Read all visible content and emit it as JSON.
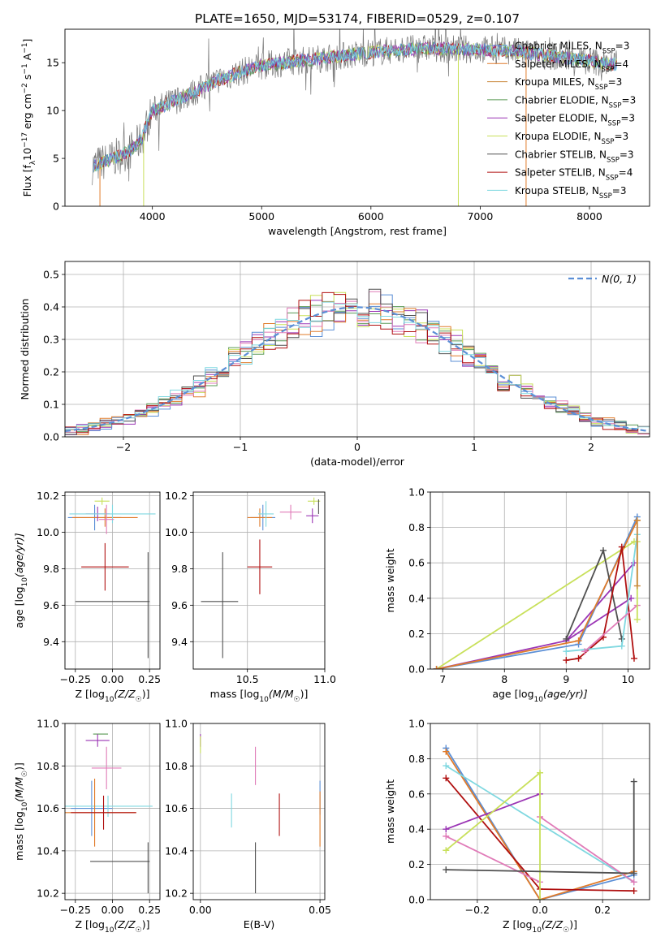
{
  "title": "PLATE=1650, MJD=53174, FIBERID=0529, z=0.107",
  "colors": {
    "chabrier_miles": "#5b8fd6",
    "salpeter_miles": "#e07b2a",
    "kroupa_miles": "#c9873a",
    "chabrier_elodie": "#5a9a55",
    "salpeter_elodie": "#9b35b5",
    "kroupa_elodie": "#c8e05a",
    "chabrier_stelib": "#505050",
    "salpeter_stelib": "#b01010",
    "kroupa_stelib": "#7fd8e0",
    "pink": "#e07bb8",
    "grid": "#b0b0b0"
  },
  "chart_data": [
    {
      "id": "spectrum",
      "type": "line",
      "xlabel": "wavelength [Angstrom, rest frame]",
      "ylabel": "Flux [f_λ10^-17 erg cm^-2 s^-1 A^-1]",
      "xlim": [
        3200,
        8550
      ],
      "ylim": [
        0,
        18.5
      ],
      "xticks": [
        4000,
        5000,
        6000,
        7000,
        8000
      ],
      "yticks": [
        0,
        5,
        10,
        15
      ],
      "grid": false,
      "legend_position": "right",
      "legend": [
        "Chabrier MILES, N_SSP=3",
        "Salpeter MILES, N_SSP=4",
        "Kroupa MILES, N_SSP=3",
        "Chabrier ELODIE, N_SSP=3",
        "Salpeter ELODIE, N_SSP=3",
        "Kroupa ELODIE, N_SSP=3",
        "Chabrier STELIB, N_SSP=3",
        "Salpeter STELIB, N_SSP=4",
        "Kroupa STELIB, N_SSP=3"
      ],
      "continuum": {
        "x": [
          3450,
          3600,
          3800,
          3900,
          4000,
          4200,
          4400,
          4600,
          4800,
          5000,
          5200,
          5500,
          5800,
          6000,
          6200,
          6500,
          6800,
          7000,
          7300,
          7600,
          8000,
          8250
        ],
        "y": [
          4.2,
          4.8,
          5.8,
          7.0,
          10.0,
          11.0,
          12.0,
          13.2,
          14.0,
          14.7,
          15.0,
          15.4,
          15.8,
          16.1,
          16.3,
          16.5,
          16.4,
          16.4,
          16.2,
          15.8,
          15.2,
          14.8
        ]
      }
    },
    {
      "id": "residual-hist",
      "type": "step-histogram",
      "xlabel": "(data-model)/error",
      "ylabel": "Normed distribution",
      "xlim": [
        -2.5,
        2.5
      ],
      "ylim": [
        0,
        0.54
      ],
      "xticks": [
        -2,
        -1,
        0,
        1,
        2
      ],
      "yticks": [
        0.0,
        0.1,
        0.2,
        0.3,
        0.4,
        0.5
      ],
      "grid": true,
      "legend": "N(0,1)",
      "legend_position": "top-right"
    },
    {
      "id": "age-vs-z",
      "type": "errorbar",
      "xlabel": "Z [log10(Z/Z☉)]",
      "ylabel": "age  [log10(age/yr)]",
      "xlim": [
        -0.32,
        0.32
      ],
      "ylim": [
        9.25,
        10.22
      ],
      "xticks": [
        -0.25,
        0.0,
        0.25
      ],
      "yticks": [
        9.4,
        9.6,
        9.8,
        10.0,
        10.2
      ],
      "points": [
        {
          "c": "chabrier_miles",
          "x": -0.12,
          "y": 10.08,
          "xe": 0.18,
          "ye": 0.07
        },
        {
          "c": "salpeter_miles",
          "x": -0.05,
          "y": 10.08,
          "xe": 0.22,
          "ye": 0.05
        },
        {
          "c": "salpeter_elodie",
          "x": -0.1,
          "y": 10.1,
          "xe": 0.08,
          "ye": 0.04
        },
        {
          "c": "kroupa_elodie",
          "x": -0.07,
          "y": 10.17,
          "xe": 0.05,
          "ye": 0.02
        },
        {
          "c": "kroupa_stelib",
          "x": 0.0,
          "y": 10.1,
          "xe": 0.29,
          "ye": 0.05
        },
        {
          "c": "pink",
          "x": -0.04,
          "y": 10.07,
          "xe": 0.05,
          "ye": 0.08
        },
        {
          "c": "salpeter_stelib",
          "x": -0.05,
          "y": 9.81,
          "xe": 0.16,
          "ye": 0.13
        },
        {
          "c": "chabrier_stelib",
          "x": 0.0,
          "y": 9.62,
          "xe": 0.25,
          "ye": 0.0
        },
        {
          "c": "chabrier_stelib",
          "x": 0.24,
          "y": 9.6,
          "xe": 0.0,
          "ye": 0.29
        }
      ]
    },
    {
      "id": "age-vs-mass",
      "type": "errorbar",
      "xlabel": "mass [log10(M/M☉)]",
      "ylabel": "",
      "xlim": [
        10.15,
        11.0
      ],
      "ylim": [
        9.25,
        10.22
      ],
      "xticks": [
        10.5,
        11.0
      ],
      "yticks": [
        9.4,
        9.6,
        9.8,
        10.0,
        10.2
      ],
      "points": [
        {
          "c": "chabrier_miles",
          "x": 10.6,
          "y": 10.08,
          "xe": 0.08,
          "ye": 0.07
        },
        {
          "c": "salpeter_miles",
          "x": 10.58,
          "y": 10.08,
          "xe": 0.08,
          "ye": 0.05
        },
        {
          "c": "kroupa_stelib",
          "x": 10.62,
          "y": 10.1,
          "xe": 0.05,
          "ye": 0.07
        },
        {
          "c": "pink",
          "x": 10.78,
          "y": 10.11,
          "xe": 0.07,
          "ye": 0.04
        },
        {
          "c": "salpeter_elodie",
          "x": 10.92,
          "y": 10.09,
          "xe": 0.04,
          "ye": 0.04
        },
        {
          "c": "kroupa_elodie",
          "x": 10.93,
          "y": 10.17,
          "xe": 0.04,
          "ye": 0.02
        },
        {
          "c": "chabrier_stelib",
          "x": 10.96,
          "y": 10.14,
          "xe": 0.0,
          "ye": 0.04
        },
        {
          "c": "salpeter_stelib",
          "x": 10.58,
          "y": 9.81,
          "xe": 0.08,
          "ye": 0.15
        },
        {
          "c": "chabrier_stelib",
          "x": 10.32,
          "y": 9.62,
          "xe": 0.12,
          "ye": 0.0
        },
        {
          "c": "chabrier_stelib",
          "x": 10.34,
          "y": 9.6,
          "xe": 0.0,
          "ye": 0.29
        }
      ]
    },
    {
      "id": "massweight-vs-age",
      "type": "line",
      "xlabel": "age  [log10(age/yr)]",
      "ylabel": "mass weight",
      "xlim": [
        6.8,
        10.35
      ],
      "ylim": [
        0,
        1.0
      ],
      "xticks": [
        7,
        8,
        9,
        10
      ],
      "yticks": [
        0.0,
        0.2,
        0.4,
        0.6,
        0.8,
        1.0
      ],
      "grid": true,
      "series": [
        {
          "c": "kroupa_elodie",
          "x": [
            6.9,
            10.1
          ],
          "y": [
            0.0,
            0.72
          ]
        },
        {
          "c": "salpeter_elodie",
          "x": [
            6.9,
            9.0,
            10.1
          ],
          "y": [
            0.0,
            0.16,
            0.6
          ]
        },
        {
          "c": "salpeter_elodie",
          "x": [
            9.0,
            10.05
          ],
          "y": [
            0.16,
            0.4
          ]
        },
        {
          "c": "chabrier_miles",
          "x": [
            6.9,
            9.2,
            10.15
          ],
          "y": [
            0.0,
            0.14,
            0.86
          ]
        },
        {
          "c": "salpeter_miles",
          "x": [
            6.9,
            9.2,
            10.15
          ],
          "y": [
            0.0,
            0.16,
            0.84
          ]
        },
        {
          "c": "chabrier_stelib",
          "x": [
            9.0,
            9.6,
            9.9
          ],
          "y": [
            0.17,
            0.67,
            0.17
          ]
        },
        {
          "c": "salpeter_stelib",
          "x": [
            9.0,
            9.2,
            9.6,
            9.9,
            10.1
          ],
          "y": [
            0.05,
            0.06,
            0.18,
            0.69,
            0.06
          ]
        },
        {
          "c": "kroupa_stelib",
          "x": [
            9.0,
            9.9,
            10.15
          ],
          "y": [
            0.1,
            0.13,
            0.76
          ]
        },
        {
          "c": "pink",
          "x": [
            9.3,
            10.15
          ],
          "y": [
            0.1,
            0.36
          ]
        },
        {
          "c": "kroupa_elodie",
          "x": [
            10.15,
            10.15
          ],
          "y": [
            0.28,
            0.72
          ]
        },
        {
          "c": "kroupa_miles",
          "x": [
            10.15,
            10.15
          ],
          "y": [
            0.47,
            0.84
          ]
        }
      ]
    },
    {
      "id": "mass-vs-z",
      "type": "errorbar",
      "xlabel": "Z [log10(Z/Z☉)]",
      "ylabel": "mass [log10(M/M☉)]",
      "xlim": [
        -0.32,
        0.32
      ],
      "ylim": [
        10.17,
        11.0
      ],
      "xticks": [
        -0.25,
        0.0,
        0.25
      ],
      "yticks": [
        10.2,
        10.4,
        10.6,
        10.8,
        11.0
      ],
      "points": [
        {
          "c": "chabrier_elodie",
          "x": -0.08,
          "y": 10.95,
          "xe": 0.05,
          "ye": 0.0
        },
        {
          "c": "salpeter_elodie",
          "x": -0.1,
          "y": 10.92,
          "xe": 0.08,
          "ye": 0.03
        },
        {
          "c": "pink",
          "x": -0.04,
          "y": 10.79,
          "xe": 0.1,
          "ye": 0.1
        },
        {
          "c": "chabrier_miles",
          "x": -0.14,
          "y": 10.6,
          "xe": 0.14,
          "ye": 0.13
        },
        {
          "c": "kroupa_stelib",
          "x": -0.03,
          "y": 10.61,
          "xe": 0.3,
          "ye": 0.05
        },
        {
          "c": "salpeter_miles",
          "x": -0.12,
          "y": 10.58,
          "xe": 0.28,
          "ye": 0.16
        },
        {
          "c": "salpeter_stelib",
          "x": -0.06,
          "y": 10.58,
          "xe": 0.22,
          "ye": 0.08
        },
        {
          "c": "chabrier_stelib",
          "x": 0.05,
          "y": 10.35,
          "xe": 0.2,
          "ye": 0.0
        },
        {
          "c": "chabrier_stelib",
          "x": 0.24,
          "y": 10.32,
          "xe": 0.0,
          "ye": 0.12
        }
      ]
    },
    {
      "id": "mass-vs-ebv",
      "type": "errorbar",
      "xlabel": "E(B-V)",
      "ylabel": "",
      "xlim": [
        -0.003,
        0.052
      ],
      "ylim": [
        10.17,
        11.0
      ],
      "xticks": [
        0.0,
        0.05
      ],
      "yticks": [
        10.2,
        10.4,
        10.6,
        10.8,
        11.0
      ],
      "points": [
        {
          "c": "salpeter_elodie",
          "x": 0.0,
          "y": 10.92,
          "xe": 0.0,
          "ye": 0.03
        },
        {
          "c": "kroupa_elodie",
          "x": 0.0,
          "y": 10.9,
          "xe": 0.0,
          "ye": 0.04
        },
        {
          "c": "pink",
          "x": 0.023,
          "y": 10.8,
          "xe": 0.0,
          "ye": 0.09
        },
        {
          "c": "kroupa_stelib",
          "x": 0.013,
          "y": 10.59,
          "xe": 0.0,
          "ye": 0.08
        },
        {
          "c": "salpeter_stelib",
          "x": 0.033,
          "y": 10.57,
          "xe": 0.0,
          "ye": 0.1
        },
        {
          "c": "chabrier_miles",
          "x": 0.05,
          "y": 10.65,
          "xe": 0.0,
          "ye": 0.08
        },
        {
          "c": "salpeter_miles",
          "x": 0.05,
          "y": 10.55,
          "xe": 0.0,
          "ye": 0.13
        },
        {
          "c": "chabrier_stelib",
          "x": 0.023,
          "y": 10.32,
          "xe": 0.0,
          "ye": 0.12
        }
      ]
    },
    {
      "id": "massweight-vs-z",
      "type": "line",
      "xlabel": "Z [log10(Z/Z☉)]",
      "ylabel": "mass weight",
      "xlim": [
        -0.35,
        0.35
      ],
      "ylim": [
        0,
        1.0
      ],
      "xticks": [
        -0.2,
        0.0,
        0.2
      ],
      "yticks": [
        0.0,
        0.2,
        0.4,
        0.6,
        0.8,
        1.0
      ],
      "grid": true,
      "series": [
        {
          "c": "chabrier_miles",
          "x": [
            -0.3,
            0.0,
            0.3
          ],
          "y": [
            0.86,
            0.0,
            0.14
          ]
        },
        {
          "c": "salpeter_miles",
          "x": [
            -0.3,
            0.0,
            0.3
          ],
          "y": [
            0.84,
            0.0,
            0.16
          ]
        },
        {
          "c": "kroupa_stelib",
          "x": [
            -0.3,
            0.3
          ],
          "y": [
            0.76,
            0.1
          ]
        },
        {
          "c": "salpeter_stelib",
          "x": [
            -0.3,
            0.0,
            0.3
          ],
          "y": [
            0.69,
            0.06,
            0.05
          ]
        },
        {
          "c": "salpeter_elodie",
          "x": [
            -0.3,
            0.0
          ],
          "y": [
            0.4,
            0.6
          ]
        },
        {
          "c": "pink",
          "x": [
            -0.3,
            0.0
          ],
          "y": [
            0.36,
            0.1
          ]
        },
        {
          "c": "pink",
          "x": [
            0.0,
            0.3
          ],
          "y": [
            0.47,
            0.1
          ]
        },
        {
          "c": "kroupa_elodie",
          "x": [
            -0.3,
            0.0,
            0.0
          ],
          "y": [
            0.28,
            0.72,
            0.0
          ]
        },
        {
          "c": "chabrier_stelib",
          "x": [
            -0.3,
            0.3,
            0.3
          ],
          "y": [
            0.17,
            0.15,
            0.67
          ]
        }
      ]
    }
  ]
}
